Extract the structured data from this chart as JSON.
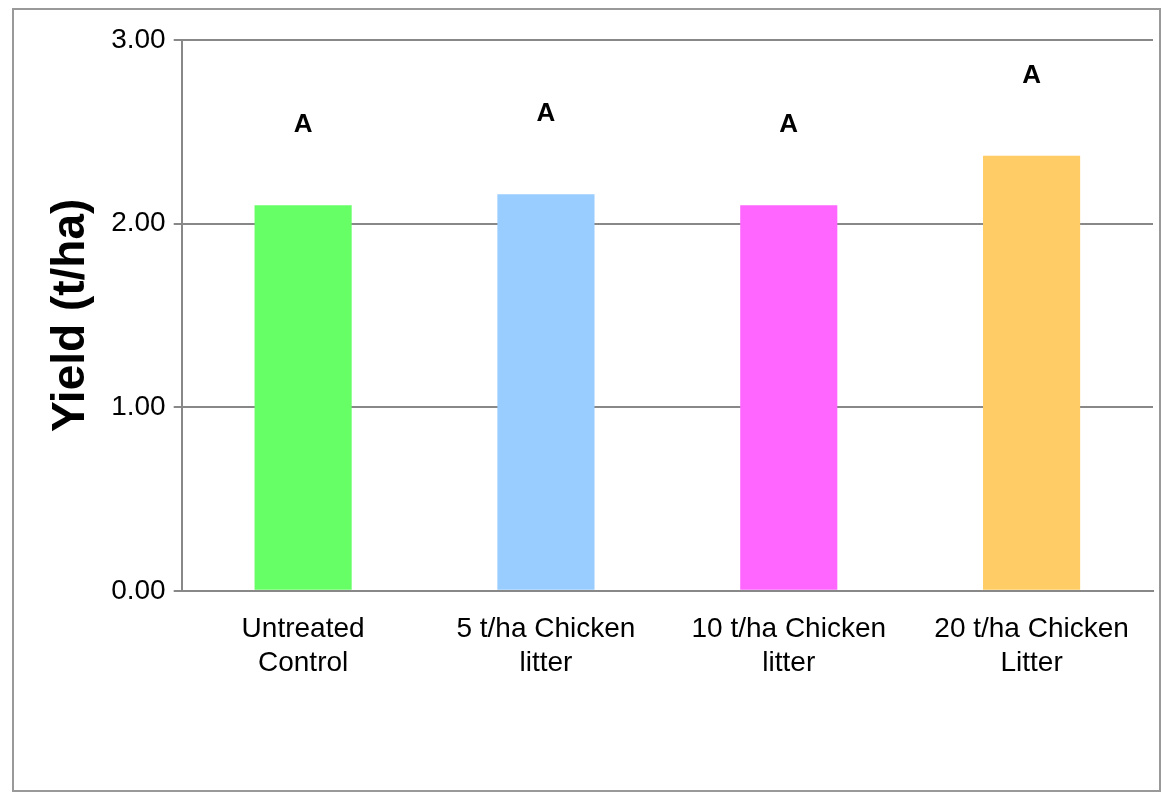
{
  "chart_data": {
    "type": "bar",
    "ylabel": "Yield (t/ha)",
    "categories": [
      "Untreated Control",
      "5 t/ha Chicken litter",
      "10 t/ha Chicken litter",
      "20 t/ha Chicken Litter"
    ],
    "values": [
      2.1,
      2.16,
      2.1,
      2.37
    ],
    "colors": [
      "#66ff66",
      "#99ccff",
      "#ff66ff",
      "#ffcc66"
    ],
    "ylim": [
      0,
      3
    ],
    "yticks": [
      {
        "value": 0,
        "label": "0.00"
      },
      {
        "value": 1,
        "label": "1.00"
      },
      {
        "value": 2,
        "label": "2.00"
      },
      {
        "value": 3,
        "label": "3.00"
      }
    ],
    "grid": "y",
    "legend": false,
    "annotations": [
      "A",
      "A",
      "A",
      "A"
    ]
  }
}
